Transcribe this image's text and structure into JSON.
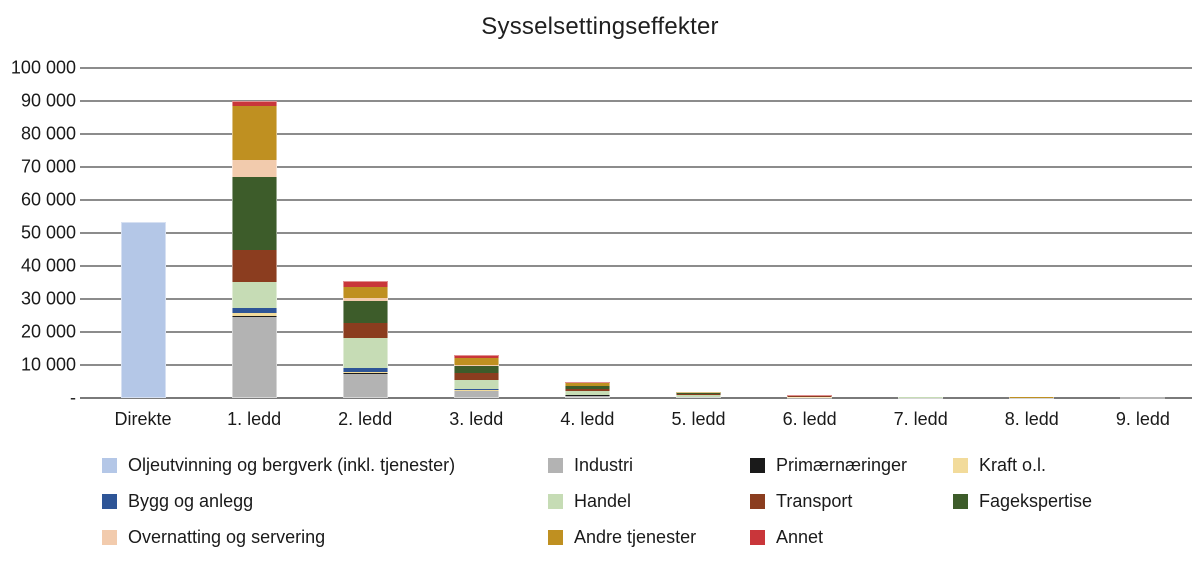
{
  "chart_data": {
    "type": "bar",
    "stacked": true,
    "title": "Sysselsettingseffekter",
    "xlabel": "",
    "ylabel": "",
    "ylim": [
      0,
      100000
    ],
    "ytick_step": 10000,
    "grid": true,
    "legend_position": "bottom",
    "categories": [
      "Direkte",
      "1. ledd",
      "2. ledd",
      "3. ledd",
      "4. ledd",
      "5. ledd",
      "6. ledd",
      "7. ledd",
      "8. ledd",
      "9. ledd"
    ],
    "yticks": [
      {
        "value": 100000,
        "label": "100 000"
      },
      {
        "value": 90000,
        "label": "90 000"
      },
      {
        "value": 80000,
        "label": "80 000"
      },
      {
        "value": 70000,
        "label": "70 000"
      },
      {
        "value": 60000,
        "label": "60 000"
      },
      {
        "value": 50000,
        "label": "50 000"
      },
      {
        "value": 40000,
        "label": "40 000"
      },
      {
        "value": 30000,
        "label": "30 000"
      },
      {
        "value": 20000,
        "label": "20 000"
      },
      {
        "value": 10000,
        "label": "10 000"
      },
      {
        "value": 0,
        "label": "-"
      }
    ],
    "series": [
      {
        "name": "Oljeutvinning og bergverk (inkl. tjenester)",
        "color": "#b4c7e7",
        "values": [
          53400,
          0,
          0,
          0,
          0,
          0,
          0,
          0,
          0,
          0
        ]
      },
      {
        "name": "Industri",
        "color": "#b3b3b3",
        "values": [
          0,
          24700,
          7200,
          2100,
          750,
          300,
          140,
          70,
          33,
          15
        ]
      },
      {
        "name": "Primærnæringer",
        "color": "#1a1a1a",
        "values": [
          0,
          200,
          400,
          100,
          50,
          20,
          10,
          5,
          2,
          1
        ]
      },
      {
        "name": "Kraft o.l.",
        "color": "#f2db9b",
        "values": [
          0,
          800,
          400,
          150,
          100,
          40,
          15,
          8,
          4,
          1
        ]
      },
      {
        "name": "Bygg og anlegg",
        "color": "#2e5597",
        "values": [
          0,
          1500,
          1200,
          400,
          150,
          60,
          25,
          12,
          6,
          2
        ]
      },
      {
        "name": "Handel",
        "color": "#c6dcb5",
        "values": [
          0,
          8100,
          8900,
          2800,
          1000,
          400,
          160,
          80,
          40,
          16
        ]
      },
      {
        "name": "Transport",
        "color": "#8b3d1f",
        "values": [
          0,
          9600,
          4500,
          2000,
          700,
          280,
          120,
          60,
          30,
          12
        ]
      },
      {
        "name": "Fagekspertise",
        "color": "#3d5c2a",
        "values": [
          0,
          22200,
          6800,
          2200,
          800,
          300,
          120,
          60,
          30,
          12
        ]
      },
      {
        "name": "Overnatting og servering",
        "color": "#f2cbad",
        "values": [
          0,
          5100,
          1000,
          300,
          150,
          50,
          20,
          10,
          5,
          2
        ]
      },
      {
        "name": "Andre tjenester",
        "color": "#bf9021",
        "values": [
          0,
          16200,
          3400,
          2000,
          900,
          350,
          150,
          75,
          40,
          15
        ]
      },
      {
        "name": "Annet",
        "color": "#c9363a",
        "values": [
          0,
          1500,
          1800,
          1000,
          300,
          100,
          40,
          20,
          10,
          4
        ]
      }
    ],
    "style": {
      "grid_color": "#8c8c8c",
      "axis_color": "#7a7a7a",
      "text_color": "#1a1a1a",
      "background": "#ffffff"
    }
  }
}
